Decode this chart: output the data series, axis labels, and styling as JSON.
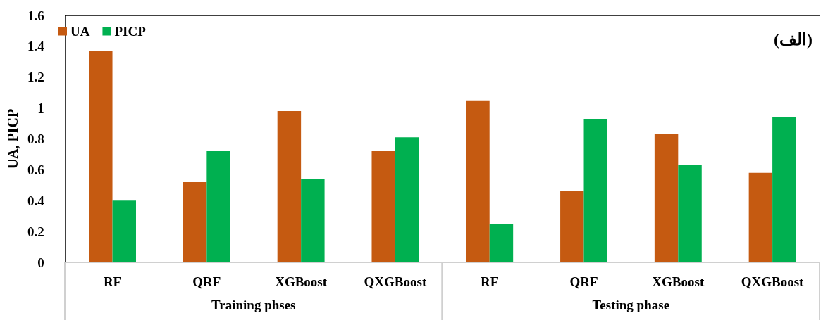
{
  "chart_data": {
    "type": "bar",
    "ylabel": "UA, PICP",
    "categories": [
      "RF",
      "QRF",
      "XGBoost",
      "QXGBoost",
      "RF",
      "QRF",
      "XGBoost",
      "QXGBoost"
    ],
    "series": [
      {
        "name": "UA",
        "color": "#c55a11",
        "values": [
          1.37,
          0.52,
          0.98,
          0.72,
          1.05,
          0.46,
          0.83,
          0.58
        ]
      },
      {
        "name": "PICP",
        "color": "#00b050",
        "values": [
          0.4,
          0.72,
          0.54,
          0.81,
          0.25,
          0.93,
          0.63,
          0.94
        ]
      }
    ],
    "ylim": [
      0,
      1.6
    ],
    "yticks": [
      0,
      0.2,
      0.4,
      0.6,
      0.8,
      1,
      1.2,
      1.4,
      1.6
    ],
    "grid": false,
    "legend": "top left",
    "annotations": [
      "(الف)",
      "Training phses",
      "Testing phase"
    ]
  }
}
